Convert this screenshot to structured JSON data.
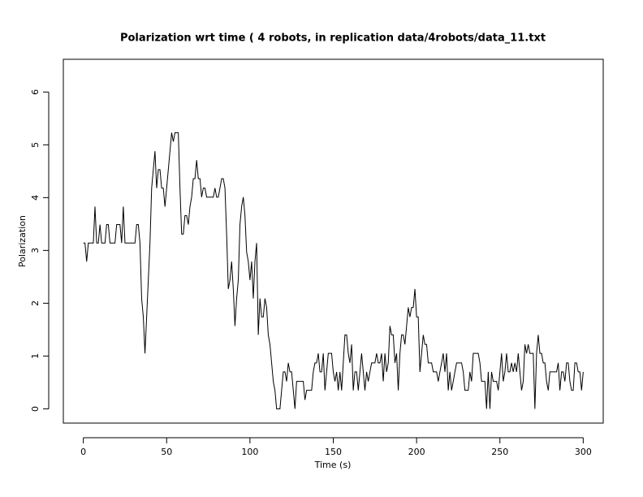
{
  "chart_data": {
    "type": "line",
    "title": "Polarization wrt time ( 4 robots, in replication  data/4robots/data_11.txt",
    "x_label": "Time (s)",
    "y_label": "Polarization",
    "color": "#000000",
    "xlim": [
      -12,
      312
    ],
    "ylim": [
      -0.27,
      6.62
    ],
    "xticks": [
      0,
      50,
      100,
      150,
      200,
      250,
      300
    ],
    "yticks": [
      0,
      1,
      2,
      3,
      4,
      5,
      6
    ],
    "x": [
      0,
      1,
      2,
      3,
      4,
      5,
      6,
      7,
      8,
      9,
      10,
      11,
      12,
      13,
      14,
      15,
      16,
      17,
      18,
      19,
      20,
      21,
      22,
      23,
      24,
      25,
      26,
      27,
      28,
      29,
      30,
      31,
      32,
      33,
      34,
      35,
      36,
      37,
      38,
      39,
      40,
      41,
      42,
      43,
      44,
      45,
      46,
      47,
      48,
      49,
      50,
      51,
      52,
      53,
      54,
      55,
      56,
      57,
      58,
      59,
      60,
      61,
      62,
      63,
      64,
      65,
      66,
      67,
      68,
      69,
      70,
      71,
      72,
      73,
      74,
      75,
      76,
      77,
      78,
      79,
      80,
      81,
      82,
      83,
      84,
      85,
      86,
      87,
      88,
      89,
      90,
      91,
      92,
      93,
      94,
      95,
      96,
      97,
      98,
      99,
      100,
      101,
      102,
      103,
      104,
      105,
      106,
      107,
      108,
      109,
      110,
      111,
      112,
      113,
      114,
      115,
      116,
      117,
      118,
      119,
      120,
      121,
      122,
      123,
      124,
      125,
      126,
      127,
      128,
      129,
      130,
      131,
      132,
      133,
      134,
      135,
      136,
      137,
      138,
      139,
      140,
      141,
      142,
      143,
      144,
      145,
      146,
      147,
      148,
      149,
      150,
      151,
      152,
      153,
      154,
      155,
      156,
      157,
      158,
      159,
      160,
      161,
      162,
      163,
      164,
      165,
      166,
      167,
      168,
      169,
      170,
      171,
      172,
      173,
      174,
      175,
      176,
      177,
      178,
      179,
      180,
      181,
      182,
      183,
      184,
      185,
      186,
      187,
      188,
      189,
      190,
      191,
      192,
      193,
      194,
      195,
      196,
      197,
      198,
      199,
      200,
      201,
      202,
      203,
      204,
      205,
      206,
      207,
      208,
      209,
      210,
      211,
      212,
      213,
      214,
      215,
      216,
      217,
      218,
      219,
      220,
      221,
      222,
      223,
      224,
      225,
      226,
      227,
      228,
      229,
      230,
      231,
      232,
      233,
      234,
      235,
      236,
      237,
      238,
      239,
      240,
      241,
      242,
      243,
      244,
      245,
      246,
      247,
      248,
      249,
      250,
      251,
      252,
      253,
      254,
      255,
      256,
      257,
      258,
      259,
      260,
      261,
      262,
      263,
      264,
      265,
      266,
      267,
      268,
      269,
      270,
      271,
      272,
      273,
      274,
      275,
      276,
      277,
      278,
      279,
      280,
      281,
      282,
      283,
      284,
      285,
      286,
      287,
      288,
      289,
      290,
      291,
      292,
      293,
      294,
      295,
      296,
      297,
      298,
      299,
      300
    ],
    "values": [
      3.14,
      3.14,
      2.79,
      3.14,
      3.14,
      3.14,
      3.14,
      3.83,
      3.14,
      3.14,
      3.49,
      3.14,
      3.14,
      3.14,
      3.49,
      3.49,
      3.14,
      3.14,
      3.14,
      3.14,
      3.49,
      3.49,
      3.49,
      3.14,
      3.83,
      3.14,
      3.14,
      3.14,
      3.14,
      3.14,
      3.14,
      3.14,
      3.49,
      3.49,
      3.14,
      2.09,
      1.74,
      1.05,
      1.74,
      2.44,
      3.14,
      4.18,
      4.53,
      4.88,
      4.18,
      4.53,
      4.53,
      4.18,
      4.18,
      3.83,
      4.18,
      4.53,
      4.88,
      5.23,
      5.06,
      5.23,
      5.23,
      5.23,
      4.18,
      3.31,
      3.31,
      3.66,
      3.66,
      3.49,
      3.83,
      4.01,
      4.36,
      4.36,
      4.71,
      4.36,
      4.36,
      4.01,
      4.18,
      4.18,
      4.01,
      4.01,
      4.01,
      4.01,
      4.01,
      4.18,
      4.01,
      4.01,
      4.18,
      4.36,
      4.36,
      4.18,
      3.31,
      2.27,
      2.44,
      2.79,
      2.27,
      1.57,
      2.09,
      2.44,
      3.49,
      3.83,
      4.01,
      3.66,
      2.97,
      2.79,
      2.44,
      2.79,
      2.09,
      2.79,
      3.14,
      1.4,
      2.09,
      1.74,
      1.74,
      2.09,
      1.92,
      1.4,
      1.22,
      0.87,
      0.52,
      0.35,
      0,
      0,
      0,
      0.35,
      0.7,
      0.7,
      0.52,
      0.87,
      0.7,
      0.7,
      0.35,
      0,
      0.52,
      0.52,
      0.52,
      0.52,
      0.52,
      0.17,
      0.35,
      0.35,
      0.35,
      0.35,
      0.7,
      0.87,
      0.87,
      1.05,
      0.7,
      0.7,
      1.05,
      0.35,
      0.7,
      1.05,
      1.05,
      1.05,
      0.7,
      0.52,
      0.7,
      0.35,
      0.7,
      0.35,
      0.87,
      1.4,
      1.4,
      1.05,
      0.87,
      1.22,
      0.35,
      0.7,
      0.7,
      0.35,
      0.7,
      1.05,
      0.7,
      0.35,
      0.7,
      0.52,
      0.7,
      0.87,
      0.87,
      0.87,
      1.05,
      0.87,
      0.87,
      1.05,
      0.52,
      1.05,
      0.7,
      0.87,
      1.57,
      1.4,
      1.4,
      0.87,
      1.05,
      0.35,
      1.05,
      1.4,
      1.4,
      1.22,
      1.57,
      1.92,
      1.74,
      1.92,
      1.92,
      2.27,
      1.74,
      1.74,
      0.7,
      1.05,
      1.4,
      1.22,
      1.22,
      0.87,
      0.87,
      0.87,
      0.7,
      0.7,
      0.7,
      0.52,
      0.7,
      0.87,
      1.05,
      0.7,
      1.05,
      0.35,
      0.7,
      0.35,
      0.52,
      0.7,
      0.87,
      0.87,
      0.87,
      0.87,
      0.7,
      0.35,
      0.35,
      0.35,
      0.7,
      0.52,
      1.05,
      1.05,
      1.05,
      1.05,
      0.87,
      0.52,
      0.52,
      0.52,
      0,
      0.7,
      0,
      0.7,
      0.52,
      0.52,
      0.52,
      0.35,
      0.7,
      1.05,
      0.52,
      0.7,
      1.05,
      0.7,
      0.7,
      0.87,
      0.7,
      0.87,
      0.7,
      1.05,
      0.7,
      0.35,
      0.52,
      1.22,
      1.05,
      1.22,
      1.05,
      1.05,
      1.05,
      0,
      1.05,
      1.4,
      1.05,
      1.05,
      0.87,
      0.87,
      0.52,
      0.35,
      0.7,
      0.7,
      0.7,
      0.7,
      0.7,
      0.87,
      0.35,
      0.7,
      0.7,
      0.52,
      0.87,
      0.87,
      0.52,
      0.35,
      0.35,
      0.87,
      0.87,
      0.7,
      0.7,
      0.35,
      0.7
    ]
  }
}
